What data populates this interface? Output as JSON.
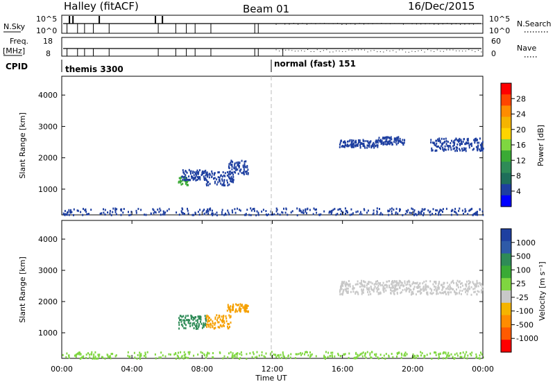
{
  "header": {
    "site": "Halley (fitACF)",
    "beam": "Beam 01",
    "date": "16/Dec/2015"
  },
  "strip_labels": {
    "nsky": "N.Sky",
    "nsearch": "N.Search",
    "freq": "Freq.",
    "freq_unit": "[MHz]",
    "nave": "Nave",
    "cpid": "CPID"
  },
  "strip_ticks": {
    "nsky_left": [
      "10^5",
      "10^0"
    ],
    "nsky_right": [
      "10^5",
      "10^0"
    ],
    "freq_left": [
      "18",
      "8"
    ],
    "nave_right": [
      "60",
      "0"
    ]
  },
  "cpid_segments": [
    {
      "label": "themis 3300",
      "start_hour": 0.0
    },
    {
      "label": "normal (fast) 151",
      "start_hour": 12.0
    }
  ],
  "panels": {
    "power": {
      "ylabel": "Slant Range [km]",
      "colorbar_label": "Power [dB]",
      "colorbar_ticks": [
        "28",
        "24",
        "20",
        "16",
        "12",
        "8",
        "4"
      ],
      "colorbar_colors": [
        "#ff0000",
        "#ff4400",
        "#ff8c00",
        "#f5b400",
        "#ffd400",
        "#7fd640",
        "#3aaa35",
        "#2e8b57",
        "#1e6e5a",
        "#1e3fa0",
        "#0000ff"
      ]
    },
    "velocity": {
      "ylabel": "Slant Range [km]",
      "colorbar_label": "Velocity [m s⁻¹]",
      "colorbar_ticks": [
        "1000",
        "500",
        "100",
        "25",
        "-25",
        "-100",
        "-500",
        "-1000"
      ],
      "colorbar_colors": [
        "#1e3fa0",
        "#2e5aa8",
        "#2e8b57",
        "#3aaa35",
        "#7fd640",
        "#c8c8c8",
        "#f5b400",
        "#ff8c00",
        "#ff5a00",
        "#ff0000"
      ]
    }
  },
  "xaxis": {
    "label": "Time UT",
    "ticks": [
      "00:00",
      "04:00",
      "08:00",
      "12:00",
      "16:00",
      "20:00",
      "00:00"
    ]
  },
  "chart_data": {
    "type": "heatmap",
    "x_range_hours": [
      0,
      24
    ],
    "y_range_km": [
      180,
      4600
    ],
    "y_ticks_km": [
      1000,
      2000,
      3000,
      4000
    ],
    "cpid_change_hour": 12,
    "power_clusters": [
      {
        "t0": 6.6,
        "t1": 7.2,
        "r0": 1150,
        "r1": 1450,
        "color": "#3aaa35"
      },
      {
        "t0": 6.8,
        "t1": 8.2,
        "r0": 1300,
        "r1": 1650,
        "color": "#1e3fa0"
      },
      {
        "t0": 8.2,
        "t1": 9.8,
        "r0": 1150,
        "r1": 1600,
        "color": "#1e3fa0"
      },
      {
        "t0": 9.4,
        "t1": 10.6,
        "r0": 1500,
        "r1": 1950,
        "color": "#1e3fa0"
      },
      {
        "t0": 15.8,
        "t1": 18.0,
        "r0": 2350,
        "r1": 2600,
        "color": "#1e3fa0"
      },
      {
        "t0": 18.0,
        "t1": 19.5,
        "r0": 2450,
        "r1": 2700,
        "color": "#1e3fa0"
      },
      {
        "t0": 21.0,
        "t1": 24.0,
        "r0": 2250,
        "r1": 2650,
        "color": "#1e3fa0"
      },
      {
        "t0": 0.0,
        "t1": 24.0,
        "r0": 200,
        "r1": 420,
        "color": "#1e3fa0"
      }
    ],
    "velocity_clusters": [
      {
        "t0": 6.6,
        "t1": 8.2,
        "r0": 1150,
        "r1": 1600,
        "color": "#2e8b57"
      },
      {
        "t0": 8.2,
        "t1": 9.6,
        "r0": 1150,
        "r1": 1600,
        "color": "#f5a000"
      },
      {
        "t0": 9.4,
        "t1": 10.6,
        "r0": 1700,
        "r1": 1950,
        "color": "#f5a000"
      },
      {
        "t0": 15.8,
        "t1": 24.0,
        "r0": 2250,
        "r1": 2700,
        "color": "#c8c8c8"
      },
      {
        "t0": 0.0,
        "t1": 24.0,
        "r0": 200,
        "r1": 420,
        "color": "#7fd640"
      }
    ]
  }
}
